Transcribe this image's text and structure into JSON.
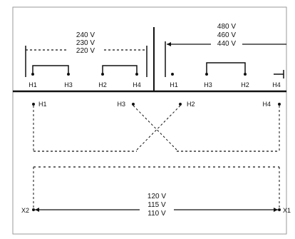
{
  "primary_left": {
    "voltages": [
      "240 V",
      "230 V",
      "220 V"
    ],
    "terminals": [
      "H1",
      "H3",
      "H2",
      "H4"
    ]
  },
  "primary_right": {
    "voltages": [
      "480 V",
      "460 V",
      "440 V"
    ],
    "terminals": [
      "H1",
      "H3",
      "H2",
      "H4"
    ]
  },
  "winding": {
    "terminals": [
      "H1",
      "H3",
      "H2",
      "H4"
    ]
  },
  "secondary": {
    "voltages": [
      "120 V",
      "115 V",
      "110 V"
    ],
    "left_terminal": "X2",
    "right_terminal": "X1"
  }
}
